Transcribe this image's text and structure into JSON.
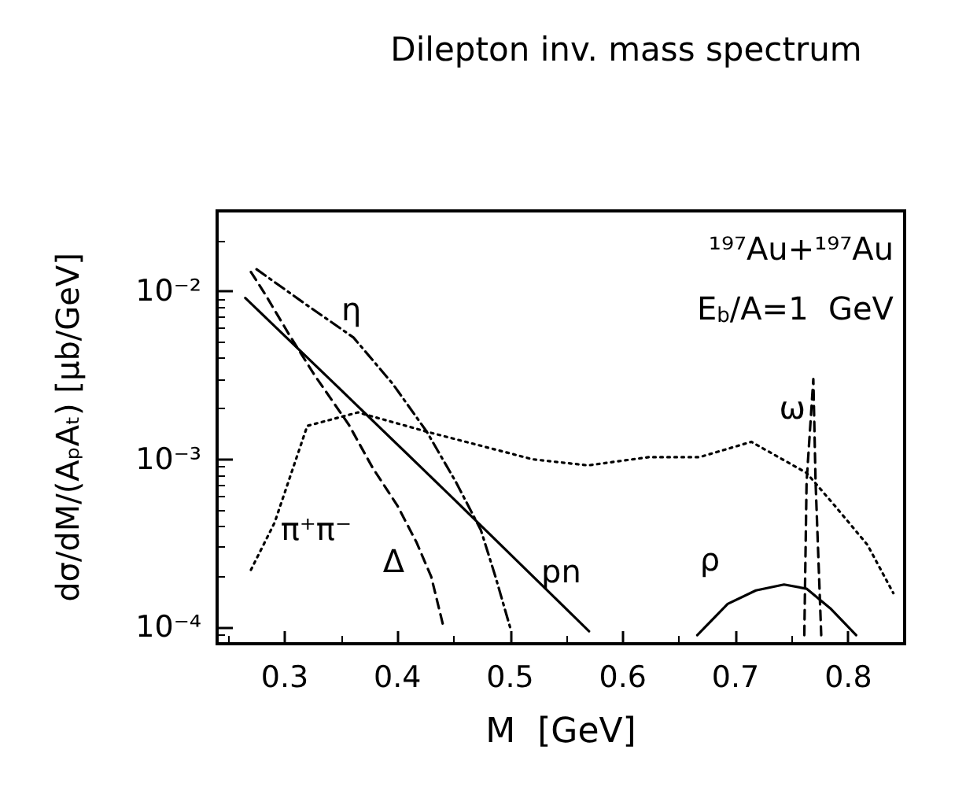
{
  "chart_data": {
    "type": "line",
    "title": "Dilepton inv. mass spectrum",
    "xlabel": "M  [GeV]",
    "ylabel": "dσ/dM/(AₚAₜ) [μb/GeV]",
    "annotations": [
      "¹⁹⁷Au+¹⁹⁷Au",
      "E$_{b}$/A=1  GeV"
    ],
    "log": "y",
    "grid": false,
    "legend": false,
    "marker": "none",
    "xlim": [
      0.24,
      0.85
    ],
    "xticks": [
      0.3,
      0.4,
      0.5,
      0.6,
      0.7,
      0.8
    ],
    "ylim": [
      8e-05,
      0.03
    ],
    "yticks": [
      {
        "value": 0.0001,
        "label": "10⁻⁴"
      },
      {
        "value": 0.001,
        "label": "10⁻³"
      },
      {
        "value": 0.01,
        "label": "10⁻²"
      }
    ],
    "series": [
      {
        "name": "η",
        "color": "#000000",
        "line_style": "dashdot",
        "x": [
          0.275,
          0.317,
          0.361,
          0.396,
          0.426,
          0.452,
          0.474,
          0.487,
          0.5
        ],
        "values": [
          0.0135,
          0.0085,
          0.0053,
          0.0028,
          0.00146,
          0.00073,
          0.00038,
          0.0002,
          0.0001
        ]
      },
      {
        "name": "Δ",
        "color": "#000000",
        "line_style": "dashed",
        "x": [
          0.27,
          0.283,
          0.304,
          0.326,
          0.357,
          0.378,
          0.4,
          0.417,
          0.43,
          0.441
        ],
        "values": [
          0.013,
          0.0095,
          0.0055,
          0.0032,
          0.0016,
          0.00089,
          0.00053,
          0.00032,
          0.0002,
          0.0001
        ]
      },
      {
        "name": "π⁺π⁻",
        "color": "#000000",
        "line_style": "dotted",
        "x": [
          0.27,
          0.291,
          0.32,
          0.365,
          0.426,
          0.52,
          0.569,
          0.623,
          0.668,
          0.714,
          0.763,
          0.788,
          0.817,
          0.84
        ],
        "values": [
          0.00022,
          0.00042,
          0.00158,
          0.0019,
          0.00146,
          0.001,
          0.00092,
          0.00103,
          0.00103,
          0.00127,
          0.00083,
          0.00053,
          0.00031,
          0.00016
        ]
      },
      {
        "name": "pn",
        "color": "#000000",
        "line_style": "solid",
        "x": [
          0.265,
          0.35,
          0.45,
          0.57
        ],
        "values": [
          0.0091,
          0.00258,
          0.00058,
          9.5e-05
        ]
      },
      {
        "name": "ρ",
        "color": "#000000",
        "line_style": "solid",
        "x": [
          0.666,
          0.693,
          0.718,
          0.743,
          0.763,
          0.784,
          0.807
        ],
        "values": [
          9e-05,
          0.000138,
          0.000166,
          0.00018,
          0.00017,
          0.00013,
          9e-05
        ]
      },
      {
        "name": "ω",
        "color": "#000000",
        "line_style": "dashed",
        "x": [
          0.761,
          0.763,
          0.769,
          0.771,
          0.776
        ],
        "values": [
          9e-05,
          0.00073,
          0.003,
          0.00073,
          9e-05
        ]
      }
    ]
  }
}
